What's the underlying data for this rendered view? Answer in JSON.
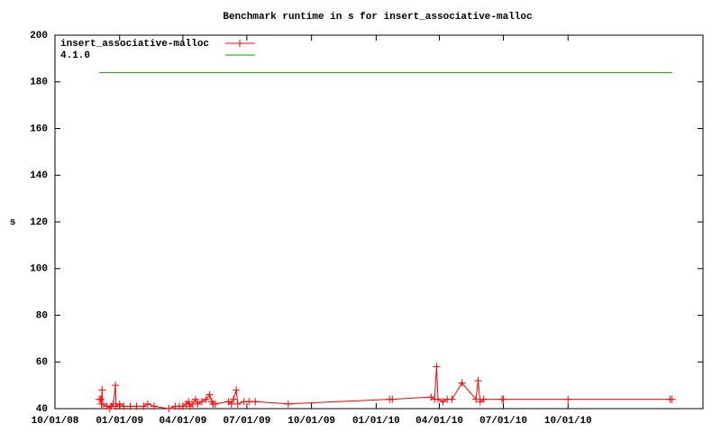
{
  "chart_data": {
    "type": "line",
    "title": "Benchmark runtime in s for insert_associative-malloc",
    "y_label": "s",
    "legend": "top-left",
    "xlim": [
      "2008-10-01",
      "2011-04-11"
    ],
    "xticks": [
      {
        "value": "2008-10-01",
        "label": "10/01/08"
      },
      {
        "value": "2009-01-01",
        "label": "01/01/09"
      },
      {
        "value": "2009-04-01",
        "label": "04/01/09"
      },
      {
        "value": "2009-07-01",
        "label": "07/01/09"
      },
      {
        "value": "2009-10-01",
        "label": "10/01/09"
      },
      {
        "value": "2010-01-01",
        "label": "01/01/10"
      },
      {
        "value": "2010-04-01",
        "label": "04/01/10"
      },
      {
        "value": "2010-07-01",
        "label": "07/01/10"
      },
      {
        "value": "2010-10-01",
        "label": "10/01/10"
      }
    ],
    "ylim": [
      40,
      200
    ],
    "yticks": [
      40,
      60,
      80,
      100,
      120,
      140,
      160,
      180,
      200
    ],
    "series": [
      {
        "name": "insert_associative-malloc",
        "color": "#ff0000",
        "marker": "+",
        "x": [
          "2008-12-03",
          "2008-12-05",
          "2008-12-06",
          "2008-12-07",
          "2008-12-08",
          "2008-12-14",
          "2008-12-18",
          "2008-12-20",
          "2008-12-23",
          "2008-12-26",
          "2008-12-27",
          "2009-01-01",
          "2009-01-07",
          "2009-01-16",
          "2009-01-25",
          "2009-02-04",
          "2009-02-10",
          "2009-02-19",
          "2009-03-12",
          "2009-03-21",
          "2009-03-27",
          "2009-04-01",
          "2009-04-06",
          "2009-04-09",
          "2009-04-11",
          "2009-04-15",
          "2009-04-19",
          "2009-04-22",
          "2009-04-28",
          "2009-05-04",
          "2009-05-09",
          "2009-05-12",
          "2009-05-14",
          "2009-05-17",
          "2009-06-05",
          "2009-06-09",
          "2009-06-12",
          "2009-06-16",
          "2009-06-18",
          "2009-06-27",
          "2009-07-04",
          "2009-07-13",
          "2009-08-29",
          "2010-01-20",
          "2010-01-24",
          "2010-03-20",
          "2010-03-25",
          "2010-03-28",
          "2010-03-30",
          "2010-04-06",
          "2010-04-12",
          "2010-04-19",
          "2010-05-03",
          "2010-05-23",
          "2010-05-26",
          "2010-05-29",
          "2010-06-03",
          "2010-06-29",
          "2010-07-01",
          "2010-10-01",
          "2011-02-23",
          "2011-02-26"
        ],
        "values": [
          44,
          44,
          42,
          48,
          42,
          41,
          40,
          41,
          42,
          50,
          41,
          42,
          41,
          41,
          41,
          41,
          42,
          41,
          40,
          41,
          41,
          41,
          42,
          43,
          41,
          42,
          44,
          42,
          43,
          44,
          46,
          43,
          42,
          42,
          43,
          42,
          44,
          48,
          42,
          43,
          43,
          43,
          42,
          44,
          44,
          45,
          44,
          58,
          44,
          43,
          44,
          44,
          51,
          44,
          52,
          43,
          44,
          44,
          44,
          44,
          44,
          44
        ]
      },
      {
        "name": "4.1.0",
        "color": "#00a000",
        "x": [
          "2008-12-03",
          "2011-02-26"
        ],
        "values": [
          184,
          184
        ]
      }
    ]
  }
}
